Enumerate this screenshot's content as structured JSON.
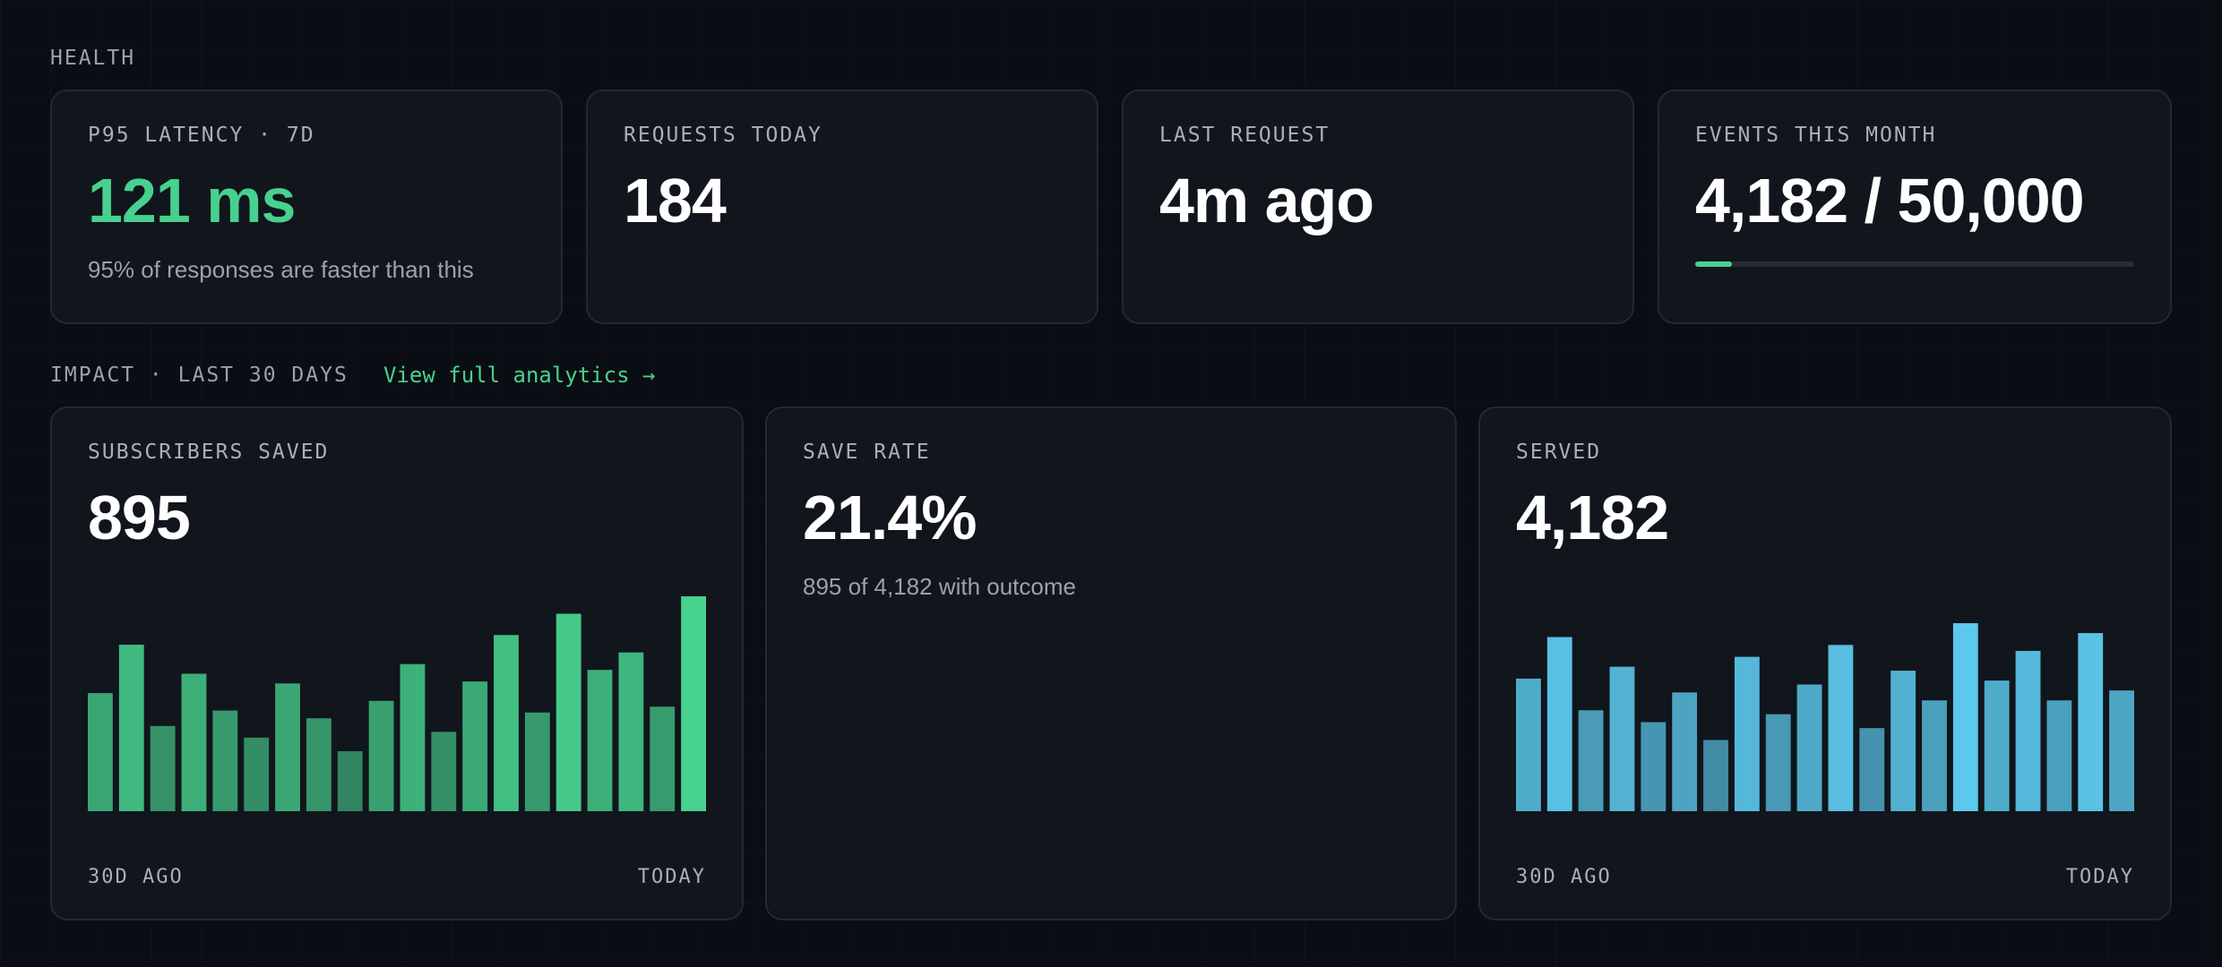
{
  "health": {
    "section_label": "HEALTH",
    "latency": {
      "label": "P95 LATENCY · 7D",
      "value": "121 ms",
      "subtitle": "95% of responses are faster than this",
      "value_color": "#47d18e"
    },
    "requests": {
      "label": "REQUESTS TODAY",
      "value": "184"
    },
    "last_request": {
      "label": "LAST REQUEST",
      "value": "4m ago"
    },
    "events": {
      "label": "EVENTS THIS MONTH",
      "value": "4,182 / 50,000",
      "used": 4182,
      "limit": 50000
    }
  },
  "impact": {
    "section_label": "IMPACT · LAST 30 DAYS",
    "link_label": "View full analytics →",
    "subscribers_saved": {
      "label": "SUBSCRIBERS SAVED",
      "value": "895",
      "axis_start": "30D AGO",
      "axis_end": "TODAY"
    },
    "save_rate": {
      "label": "SAVE RATE",
      "value": "21.4%",
      "subtitle": "895 of 4,182 with outcome"
    },
    "served": {
      "label": "SERVED",
      "value": "4,182",
      "axis_start": "30D AGO",
      "axis_end": "TODAY"
    }
  },
  "chart_data": [
    {
      "type": "bar",
      "series": [
        {
          "values": [
            61,
            86,
            44,
            71,
            52,
            38,
            66,
            48,
            31,
            57,
            76,
            41,
            67,
            91,
            51,
            102,
            73,
            82,
            54,
            111
          ],
          "color": "#47d18e"
        }
      ],
      "ylim": [
        0,
        111
      ]
    },
    {
      "type": "bar",
      "series": [
        {
          "values": [
            67,
            88,
            51,
            73,
            45,
            60,
            36,
            78,
            49,
            64,
            84,
            42,
            71,
            56,
            95,
            66,
            81,
            56,
            90,
            61
          ],
          "color": "#5cc8ec"
        }
      ],
      "ylim": [
        0,
        95
      ]
    }
  ]
}
